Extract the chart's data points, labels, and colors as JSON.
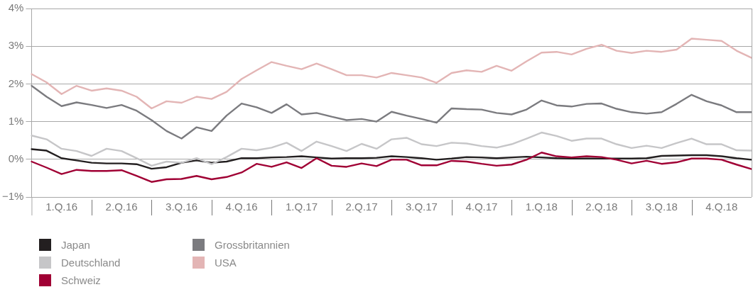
{
  "chart_data": {
    "type": "line",
    "categories": [
      null,
      null,
      "1.Q.16",
      null,
      null,
      null,
      "2.Q.16",
      null,
      null,
      null,
      "3.Q.16",
      null,
      null,
      null,
      "4.Q.16",
      null,
      null,
      null,
      "1.Q.17",
      null,
      null,
      null,
      "2.Q.17",
      null,
      null,
      null,
      "3.Q.17",
      null,
      null,
      null,
      "4.Q.17",
      null,
      null,
      null,
      "1.Q.18",
      null,
      null,
      null,
      "2.Q.18",
      null,
      null,
      null,
      "3.Q.18",
      null,
      null,
      null,
      "4.Q.18",
      null,
      null
    ],
    "ylim": [
      -1,
      4
    ],
    "yticks": [
      {
        "value": -1,
        "label": "−1%"
      },
      {
        "value": 0,
        "label": "0%"
      },
      {
        "value": 1,
        "label": "1%"
      },
      {
        "value": 2,
        "label": "2%"
      },
      {
        "value": 3,
        "label": "3%"
      },
      {
        "value": 4,
        "label": "4%"
      }
    ],
    "grid": "y",
    "legend": "bottom left",
    "marker": "none",
    "line_style": "solid",
    "series": [
      {
        "name": "Japan",
        "color": "#231f20",
        "values": [
          0.27,
          0.23,
          0.03,
          -0.03,
          -0.09,
          -0.11,
          -0.11,
          -0.13,
          -0.25,
          -0.21,
          -0.09,
          -0.03,
          -0.09,
          -0.06,
          0.03,
          0.03,
          0.05,
          0.06,
          0.08,
          0.05,
          0.02,
          0.03,
          0.03,
          0.04,
          0.08,
          0.06,
          0.03,
          -0.01,
          0.02,
          0.06,
          0.05,
          0.03,
          0.05,
          0.07,
          0.05,
          0.03,
          0.02,
          0.02,
          0.02,
          0.02,
          0.02,
          0.03,
          0.09,
          0.1,
          0.11,
          0.11,
          0.08,
          0.03,
          -0.01
        ]
      },
      {
        "name": "Deutschland",
        "color": "#c6c6c8",
        "values": [
          0.63,
          0.53,
          0.28,
          0.22,
          0.09,
          0.28,
          0.22,
          0.03,
          -0.17,
          -0.06,
          -0.09,
          0.03,
          -0.13,
          0.06,
          0.28,
          0.24,
          0.31,
          0.44,
          0.22,
          0.47,
          0.35,
          0.22,
          0.41,
          0.28,
          0.53,
          0.57,
          0.4,
          0.35,
          0.44,
          0.42,
          0.35,
          0.31,
          0.4,
          0.55,
          0.71,
          0.62,
          0.49,
          0.55,
          0.55,
          0.4,
          0.3,
          0.36,
          0.3,
          0.43,
          0.55,
          0.4,
          0.4,
          0.24,
          0.23
        ]
      },
      {
        "name": "Schweiz",
        "color": "#a00034",
        "values": [
          -0.06,
          -0.22,
          -0.39,
          -0.28,
          -0.31,
          -0.31,
          -0.29,
          -0.44,
          -0.6,
          -0.53,
          -0.52,
          -0.44,
          -0.53,
          -0.47,
          -0.35,
          -0.12,
          -0.2,
          -0.08,
          -0.23,
          0.03,
          -0.17,
          -0.2,
          -0.11,
          -0.18,
          -0.01,
          -0.01,
          -0.16,
          -0.16,
          -0.04,
          -0.06,
          -0.12,
          -0.17,
          -0.14,
          -0.01,
          0.18,
          0.08,
          0.05,
          0.08,
          0.06,
          -0.01,
          -0.11,
          -0.04,
          -0.12,
          -0.08,
          0.02,
          0.02,
          -0.01,
          -0.14,
          -0.26
        ]
      },
      {
        "name": "Grossbritannien",
        "color": "#7b7b7f",
        "values": [
          1.95,
          1.66,
          1.41,
          1.51,
          1.44,
          1.36,
          1.44,
          1.29,
          1.04,
          0.75,
          0.55,
          0.85,
          0.75,
          1.16,
          1.48,
          1.38,
          1.23,
          1.46,
          1.19,
          1.23,
          1.13,
          1.04,
          1.07,
          1.0,
          1.26,
          1.16,
          1.07,
          0.97,
          1.35,
          1.33,
          1.32,
          1.23,
          1.19,
          1.32,
          1.56,
          1.43,
          1.4,
          1.47,
          1.48,
          1.34,
          1.25,
          1.21,
          1.25,
          1.47,
          1.71,
          1.54,
          1.43,
          1.25,
          1.25
        ]
      },
      {
        "name": "USA",
        "color": "#e3b5b5",
        "values": [
          2.26,
          2.04,
          1.73,
          1.95,
          1.82,
          1.88,
          1.82,
          1.66,
          1.35,
          1.54,
          1.5,
          1.66,
          1.6,
          1.79,
          2.13,
          2.36,
          2.58,
          2.48,
          2.39,
          2.54,
          2.39,
          2.23,
          2.23,
          2.17,
          2.29,
          2.23,
          2.17,
          2.03,
          2.29,
          2.36,
          2.32,
          2.48,
          2.35,
          2.6,
          2.83,
          2.85,
          2.78,
          2.93,
          3.04,
          2.88,
          2.82,
          2.88,
          2.85,
          2.91,
          3.2,
          3.17,
          3.14,
          2.88,
          2.69
        ]
      }
    ]
  }
}
